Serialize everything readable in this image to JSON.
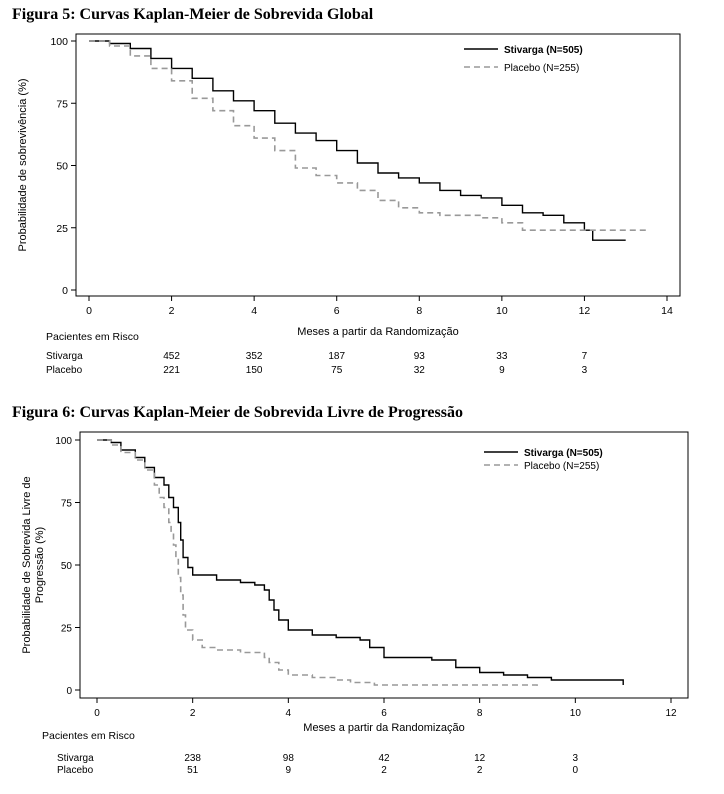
{
  "chart_data": [
    {
      "type": "line",
      "title": "Figura 5: Curvas Kaplan-Meier de Sobrevida Global",
      "xlabel": "Meses a partir da Randomização",
      "ylabel": "Probabilidade de sobrevivência (%)",
      "xlim": [
        0,
        14
      ],
      "ylim": [
        0,
        100
      ],
      "x_ticks": [
        0,
        2,
        4,
        6,
        8,
        10,
        12,
        14
      ],
      "y_ticks": [
        0,
        25,
        50,
        75,
        100
      ],
      "grid": false,
      "legend_position": "top-right",
      "series": [
        {
          "name": "Stivarga (N=505)",
          "color": "#000000",
          "style": "solid",
          "points": [
            [
              0,
              100
            ],
            [
              0.5,
              99
            ],
            [
              1,
              97
            ],
            [
              1.5,
              93
            ],
            [
              2,
              89
            ],
            [
              2.5,
              85
            ],
            [
              3,
              80
            ],
            [
              3.5,
              76
            ],
            [
              4,
              72
            ],
            [
              4.5,
              67
            ],
            [
              5,
              63
            ],
            [
              5.5,
              60
            ],
            [
              6,
              56
            ],
            [
              6.5,
              51
            ],
            [
              7,
              47
            ],
            [
              7.5,
              45
            ],
            [
              8,
              43
            ],
            [
              8.5,
              40
            ],
            [
              9,
              38
            ],
            [
              9.5,
              37
            ],
            [
              10,
              34
            ],
            [
              10.5,
              31
            ],
            [
              11,
              30
            ],
            [
              11.5,
              27
            ],
            [
              12,
              24
            ],
            [
              12.2,
              20
            ],
            [
              13,
              20
            ]
          ]
        },
        {
          "name": "Placebo (N=255)",
          "color": "#999999",
          "style": "dashed",
          "points": [
            [
              0,
              100
            ],
            [
              0.5,
              98
            ],
            [
              1,
              94
            ],
            [
              1.5,
              89
            ],
            [
              2,
              84
            ],
            [
              2.5,
              77
            ],
            [
              3,
              72
            ],
            [
              3.5,
              66
            ],
            [
              4,
              61
            ],
            [
              4.5,
              56
            ],
            [
              5,
              49
            ],
            [
              5.5,
              46
            ],
            [
              6,
              43
            ],
            [
              6.5,
              40
            ],
            [
              7,
              36
            ],
            [
              7.5,
              33
            ],
            [
              8,
              31
            ],
            [
              8.5,
              30
            ],
            [
              9,
              30
            ],
            [
              9.5,
              29
            ],
            [
              10,
              27
            ],
            [
              10.5,
              24
            ],
            [
              11,
              24
            ],
            [
              12,
              24
            ],
            [
              13,
              24
            ],
            [
              13.5,
              24
            ]
          ]
        }
      ],
      "risk_table": {
        "header": "Pacientes em Risco",
        "x": [
          2,
          4,
          6,
          8,
          10,
          12
        ],
        "rows": [
          {
            "label": "Stivarga",
            "values": [
              "452",
              "352",
              "187",
              "93",
              "33",
              "7"
            ]
          },
          {
            "label": "Placebo",
            "values": [
              "221",
              "150",
              "75",
              "32",
              "9",
              "3"
            ]
          }
        ]
      }
    },
    {
      "type": "line",
      "title": "Figura 6: Curvas Kaplan-Meier de Sobrevida Livre de Progressão",
      "xlabel": "Meses a partir da Randomização",
      "ylabel_lines": [
        "Probabilidade de Sobrevida Livre de",
        "Progressão (%)"
      ],
      "xlim": [
        0,
        12
      ],
      "ylim": [
        0,
        100
      ],
      "x_ticks": [
        0,
        2,
        4,
        6,
        8,
        10,
        12
      ],
      "y_ticks": [
        0,
        25,
        50,
        75,
        100
      ],
      "grid": false,
      "legend_position": "top-right",
      "series": [
        {
          "name": "Stivarga (N=505)",
          "color": "#000000",
          "style": "solid",
          "points": [
            [
              0,
              100
            ],
            [
              0.3,
              99
            ],
            [
              0.5,
              96
            ],
            [
              0.8,
              93
            ],
            [
              1,
              89
            ],
            [
              1.2,
              85
            ],
            [
              1.4,
              82
            ],
            [
              1.5,
              77
            ],
            [
              1.6,
              73
            ],
            [
              1.7,
              67
            ],
            [
              1.75,
              60
            ],
            [
              1.8,
              53
            ],
            [
              1.9,
              49
            ],
            [
              2,
              46
            ],
            [
              2.5,
              44
            ],
            [
              3,
              43
            ],
            [
              3.3,
              42
            ],
            [
              3.5,
              40
            ],
            [
              3.6,
              36
            ],
            [
              3.7,
              32
            ],
            [
              3.8,
              28
            ],
            [
              4,
              24
            ],
            [
              4.5,
              22
            ],
            [
              5,
              21
            ],
            [
              5.5,
              20
            ],
            [
              5.7,
              17
            ],
            [
              6,
              13
            ],
            [
              6.5,
              13
            ],
            [
              7,
              12
            ],
            [
              7.5,
              9
            ],
            [
              8,
              7
            ],
            [
              8.5,
              6
            ],
            [
              9,
              5
            ],
            [
              9.5,
              4
            ],
            [
              10,
              4
            ],
            [
              10.5,
              4
            ],
            [
              10.9,
              4
            ],
            [
              11,
              2
            ]
          ]
        },
        {
          "name": "Placebo (N=255)",
          "color": "#999999",
          "style": "dashed",
          "points": [
            [
              0,
              100
            ],
            [
              0.3,
              98
            ],
            [
              0.5,
              95
            ],
            [
              0.8,
              92
            ],
            [
              1,
              88
            ],
            [
              1.2,
              82
            ],
            [
              1.3,
              77
            ],
            [
              1.4,
              73
            ],
            [
              1.5,
              67
            ],
            [
              1.55,
              63
            ],
            [
              1.6,
              58
            ],
            [
              1.65,
              53
            ],
            [
              1.7,
              45
            ],
            [
              1.75,
              38
            ],
            [
              1.8,
              30
            ],
            [
              1.85,
              24
            ],
            [
              2,
              20
            ],
            [
              2.2,
              17
            ],
            [
              2.5,
              16
            ],
            [
              3,
              15
            ],
            [
              3.5,
              13
            ],
            [
              3.6,
              11
            ],
            [
              3.8,
              8
            ],
            [
              4,
              6
            ],
            [
              4.5,
              5
            ],
            [
              5,
              4
            ],
            [
              5.3,
              3
            ],
            [
              5.8,
              2
            ],
            [
              6.5,
              2
            ],
            [
              7,
              2
            ],
            [
              8,
              2
            ],
            [
              8.5,
              2
            ],
            [
              9.2,
              1
            ]
          ]
        }
      ],
      "risk_table": {
        "header": "Pacientes em Risco",
        "x": [
          2,
          4,
          6,
          8,
          10
        ],
        "rows": [
          {
            "label": "Stivarga",
            "values": [
              "238",
              "98",
              "42",
              "12",
              "3"
            ]
          },
          {
            "label": "Placebo",
            "values": [
              "51",
              "9",
              "2",
              "2",
              "0"
            ]
          }
        ]
      }
    }
  ]
}
